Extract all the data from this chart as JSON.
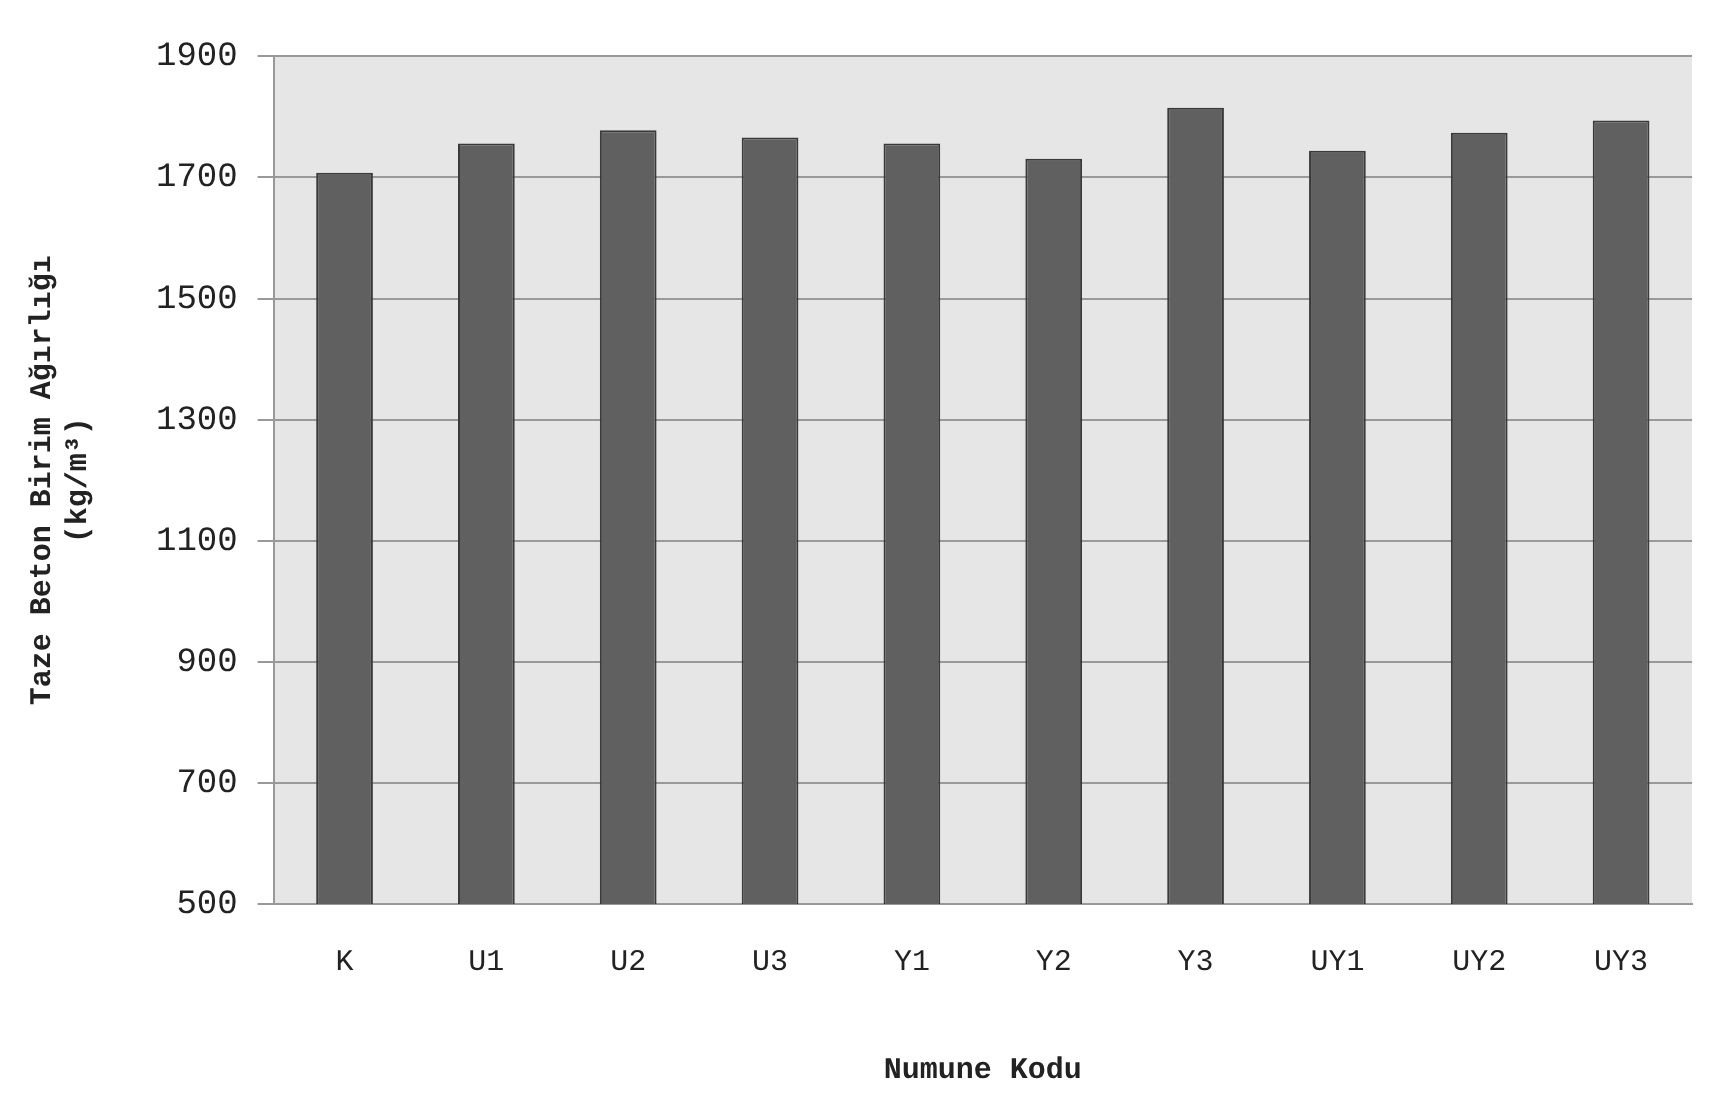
{
  "chart_data": {
    "type": "bar",
    "xlabel": "Numune Kodu",
    "ylabel": "Taze Beton Birim Ağırlığı\n(kg/m³)",
    "categories": [
      "K",
      "U1",
      "U2",
      "U3",
      "Y1",
      "Y2",
      "Y3",
      "UY1",
      "UY2",
      "UY3"
    ],
    "values": [
      1708,
      1756,
      1778,
      1766,
      1756,
      1731,
      1815,
      1744,
      1774,
      1794
    ],
    "color": "#606060",
    "ylim": [
      500,
      1900
    ],
    "yticks": [
      500,
      700,
      900,
      1100,
      1300,
      1500,
      1700,
      1900
    ],
    "grid": "y",
    "legend": false
  }
}
